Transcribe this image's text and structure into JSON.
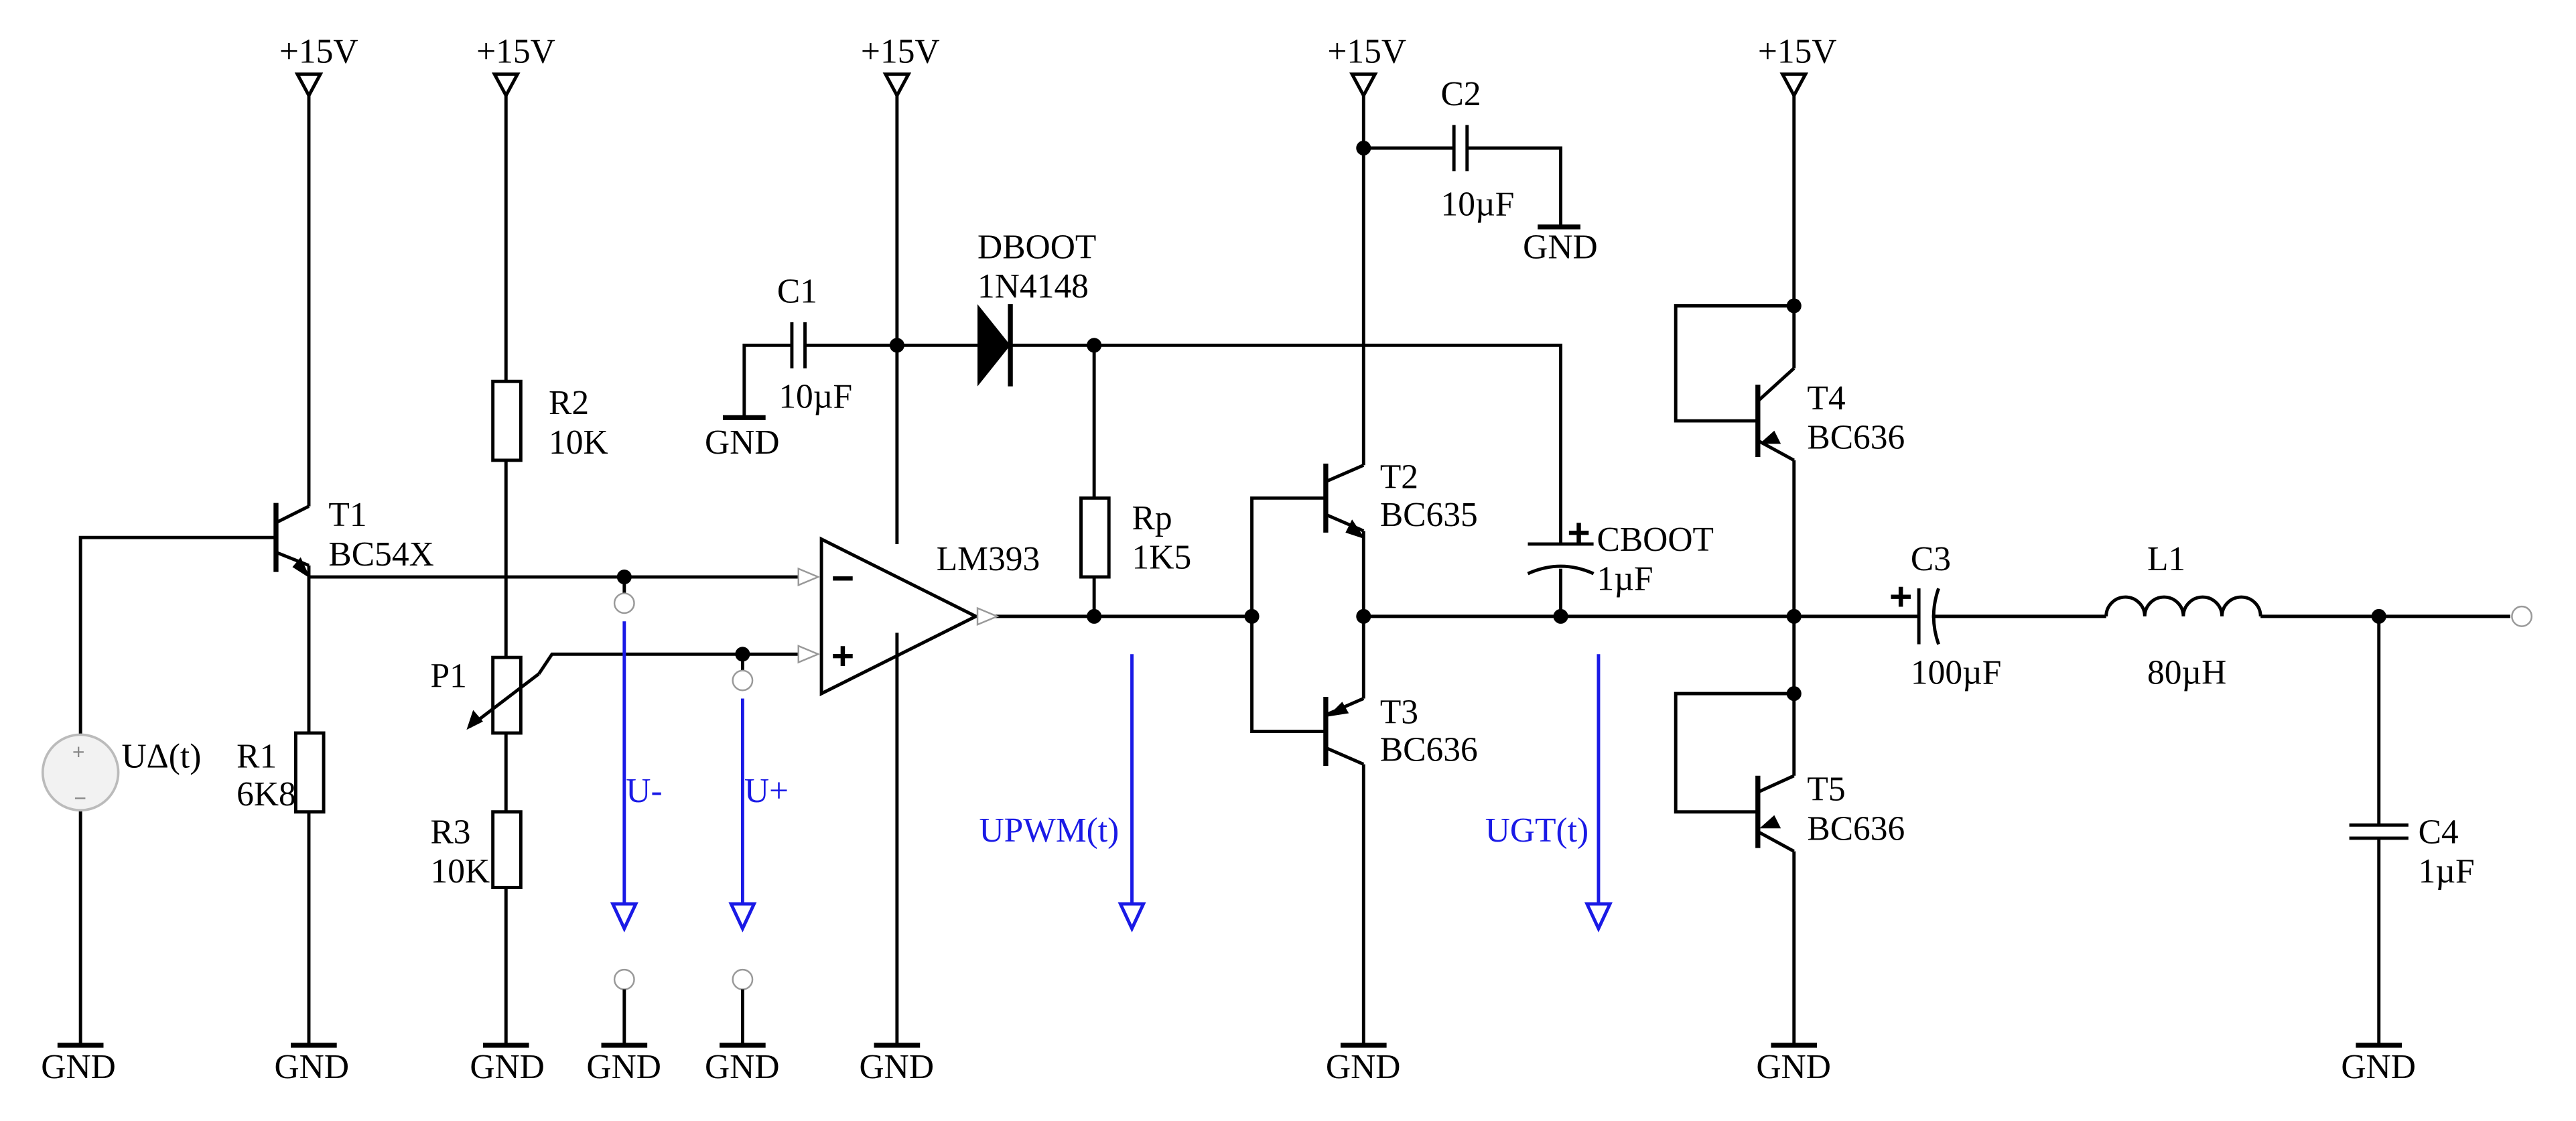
{
  "supply": "+15V",
  "ground": "GND",
  "components": {
    "source": {
      "name": "UΔ(t)"
    },
    "t1": {
      "name": "T1",
      "value": "BC54X"
    },
    "r1": {
      "name": "R1",
      "value": "6K8"
    },
    "r2": {
      "name": "R2",
      "value": "10K"
    },
    "p1": {
      "name": "P1"
    },
    "r3": {
      "name": "R3",
      "value": "10K"
    },
    "c1": {
      "name": "C1",
      "value": "10µF"
    },
    "dboot": {
      "name": "DBOOT",
      "value": "1N4148"
    },
    "comparator": {
      "name": "LM393",
      "minus": "−",
      "plus": "+"
    },
    "rp": {
      "name": "Rp",
      "value": "1K5"
    },
    "c2": {
      "name": "C2",
      "value": "10µF"
    },
    "t2": {
      "name": "T2",
      "value": "BC635"
    },
    "t3": {
      "name": "T3",
      "value": "BC636"
    },
    "cboot": {
      "name": "CBOOT",
      "value": "1µF",
      "polarity": "+"
    },
    "t4": {
      "name": "T4",
      "value": "BC636"
    },
    "t5": {
      "name": "T5",
      "value": "BC636"
    },
    "c3": {
      "name": "C3",
      "value": "100µF",
      "polarity": "+"
    },
    "l1": {
      "name": "L1",
      "value": "80µH"
    },
    "c4": {
      "name": "C4",
      "value": "1µF"
    }
  },
  "measurements": {
    "u_minus": "U-",
    "u_plus": "U+",
    "upwm": "UPWM(t)",
    "ugt": "UGT(t)"
  },
  "colors": {
    "wire": "#000000",
    "measurement": "#1a1ae6",
    "terminal": "#999999"
  }
}
